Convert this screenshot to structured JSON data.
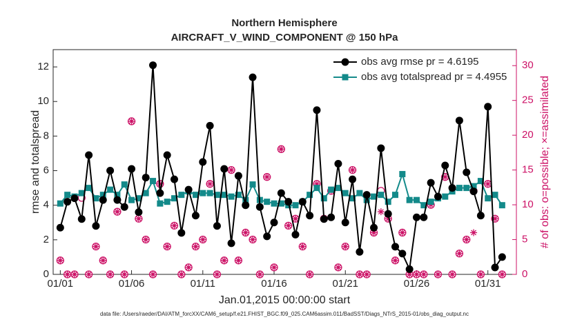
{
  "chart_data": {
    "type": "line",
    "title": "Northern Hemisphere",
    "subtitle": "AIRCRAFT_V_WIND_COMPONENT @ 150 hPa",
    "xlabel": "Jan.01,2015 00:00:00 start",
    "ylabel": "rmse and totalspread",
    "y2label": "# of obs: o=possible; ×=assimilated",
    "footnote": "data file: /Users/raeder/DAI/ATM_forcXX/CAM6_setup/f.e21.FHIST_BGC.f09_025.CAM6assim.011/BadSST/Diags_NTrS_2015-01/obs_diag_output.nc",
    "xlim": [
      -0.5,
      32
    ],
    "xticks": [
      {
        "value": 0,
        "label": "01/01"
      },
      {
        "value": 5,
        "label": "01/06"
      },
      {
        "value": 10,
        "label": "01/11"
      },
      {
        "value": 15,
        "label": "01/16"
      },
      {
        "value": 20,
        "label": "01/21"
      },
      {
        "value": 25,
        "label": "01/26"
      },
      {
        "value": 30,
        "label": "01/31"
      }
    ],
    "ylim": [
      0,
      13
    ],
    "yticks": [
      0,
      2,
      4,
      6,
      8,
      10,
      12
    ],
    "y2lim": [
      0,
      32.3
    ],
    "y2ticks": [
      0,
      5,
      10,
      15,
      20,
      25,
      30
    ],
    "legend": "upper right",
    "x": [
      0,
      0.5,
      1,
      1.5,
      2,
      2.5,
      3,
      3.5,
      4,
      4.5,
      5,
      5.5,
      6,
      6.5,
      7,
      7.5,
      8,
      8.5,
      9,
      9.5,
      10,
      10.5,
      11,
      11.5,
      12,
      12.5,
      13,
      13.5,
      14,
      14.5,
      15,
      15.5,
      16,
      16.5,
      17,
      17.5,
      18,
      18.5,
      19,
      19.5,
      20,
      20.5,
      21,
      21.5,
      22,
      22.5,
      23,
      23.5,
      24,
      24.5,
      25,
      25.5,
      26,
      26.5,
      27,
      27.5,
      28,
      28.5,
      29,
      29.5,
      30,
      30.5,
      31
    ],
    "series": [
      {
        "name": "obs avg rmse pr = 4.6195",
        "color": "#000000",
        "marker": "circle",
        "line": true,
        "axis": "y",
        "values": [
          2.7,
          4.2,
          4.4,
          3.2,
          6.9,
          2.8,
          4.3,
          6.0,
          4.3,
          3.9,
          6.1,
          3.6,
          5.6,
          12.1,
          4.7,
          6.9,
          5.5,
          2.4,
          4.9,
          3.4,
          6.5,
          8.6,
          2.8,
          6.1,
          1.8,
          5.7,
          4.0,
          11.4,
          3.9,
          2.2,
          3.0,
          4.7,
          4.2,
          2.3,
          4.2,
          3.4,
          9.5,
          3.2,
          3.3,
          6.4,
          3.0,
          5.5,
          1.3,
          4.6,
          2.7,
          7.3,
          3.5,
          1.6,
          1.2,
          0.3,
          3.3,
          3.3,
          5.3,
          4.5,
          6.3,
          5.0,
          8.9,
          5.9,
          4.8,
          3.4,
          9.7,
          0.4,
          1.0
        ]
      },
      {
        "name": "obs avg totalspread pr = 4.4955",
        "color": "#138a8a",
        "marker": "square",
        "line": true,
        "axis": "y",
        "values": [
          4.1,
          4.6,
          4.5,
          4.7,
          5.0,
          4.4,
          4.6,
          4.9,
          4.6,
          5.2,
          4.3,
          4.4,
          4.7,
          5.4,
          4.1,
          4.2,
          4.4,
          4.6,
          4.8,
          4.6,
          4.7,
          4.7,
          4.6,
          4.6,
          4.5,
          4.6,
          4.3,
          5.2,
          4.3,
          4.2,
          4.1,
          4.1,
          4.0,
          4.0,
          4.2,
          4.6,
          5.0,
          4.4,
          4.9,
          5.0,
          4.7,
          4.4,
          4.7,
          4.3,
          4.5,
          4.6,
          4.2,
          4.6,
          5.8,
          4.3,
          4.3,
          4.0,
          4.2,
          4.4,
          4.5,
          4.8,
          5.0,
          5.0,
          5.1,
          5.4,
          4.4,
          4.6,
          4.0
        ]
      },
      {
        "color": "#cc1166",
        "marker": "open-circle",
        "line": false,
        "axis": "y2",
        "values": [
          2,
          0,
          0,
          11,
          0,
          4,
          2,
          0,
          9,
          0,
          22,
          8,
          5,
          0,
          13,
          4,
          7,
          0,
          1,
          4,
          5,
          13,
          0,
          2,
          15,
          2,
          6,
          5,
          0,
          14,
          1,
          18,
          7,
          8,
          4,
          0,
          13,
          8,
          12,
          1,
          4,
          15,
          0,
          0,
          6,
          12,
          8,
          2,
          6,
          0,
          0,
          0,
          10,
          0,
          14,
          0,
          3,
          5,
          12,
          0,
          13,
          8,
          0
        ]
      },
      {
        "color": "#cc1166",
        "marker": "asterisk",
        "line": false,
        "axis": "y2",
        "values": [
          2,
          0,
          0,
          8,
          0,
          4,
          2,
          0,
          9,
          0,
          22,
          8,
          5,
          0,
          13,
          4,
          7,
          0,
          1,
          4,
          5,
          13,
          0,
          2,
          15,
          2,
          6,
          5,
          0,
          14,
          1,
          18,
          7,
          8,
          4,
          0,
          13,
          8,
          12,
          1,
          4,
          15,
          0,
          0,
          6,
          9,
          8,
          2,
          6,
          0,
          0,
          0,
          10,
          0,
          14,
          0,
          3,
          5,
          6,
          0,
          13,
          8,
          0
        ]
      }
    ]
  }
}
